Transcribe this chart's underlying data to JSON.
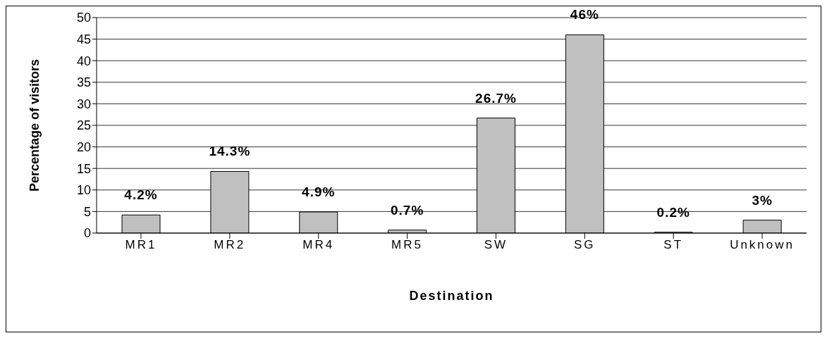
{
  "chart_data": {
    "type": "bar",
    "xlabel": "Destination",
    "ylabel": "Percentage of visitors",
    "categories": [
      "MR1",
      "MR2",
      "MR4",
      "MR5",
      "SW",
      "SG",
      "ST",
      "Unknown"
    ],
    "values": [
      4.2,
      14.3,
      4.9,
      0.7,
      26.7,
      46,
      0.2,
      3
    ],
    "value_labels": [
      "4.2%",
      "14.3%",
      "4.9%",
      "0.7%",
      "26.7%",
      "46%",
      "0.2%",
      "3%"
    ],
    "color": "#c0c0c0",
    "ylim": [
      0,
      50
    ],
    "yticks": [
      0,
      5,
      10,
      15,
      20,
      25,
      30,
      35,
      40,
      45,
      50
    ],
    "grid": "y"
  }
}
